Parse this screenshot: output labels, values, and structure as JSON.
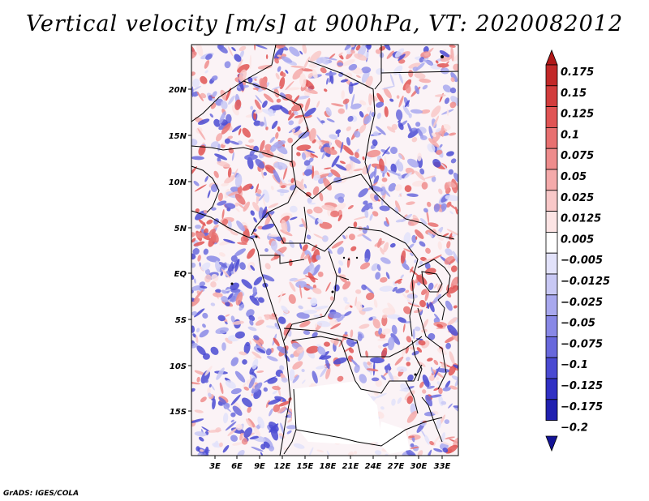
{
  "title": "Vertical velocity [m/s] at 900hPa, VT: 2020082012",
  "footer": "GrADS: IGES/COLA",
  "map": {
    "lon_labels": [
      "3E",
      "6E",
      "9E",
      "12E",
      "15E",
      "18E",
      "21E",
      "24E",
      "27E",
      "30E",
      "33E"
    ],
    "lat_labels": [
      "20N",
      "15N",
      "10N",
      "5N",
      "EQ",
      "5S",
      "10S",
      "15S"
    ]
  },
  "colorbar": {
    "levels": [
      "0.175",
      "0.15",
      "0.125",
      "0.1",
      "0.075",
      "0.05",
      "0.025",
      "0.0125",
      "0.005",
      "−0.005",
      "−0.0125",
      "−0.025",
      "−0.05",
      "−0.075",
      "−0.1",
      "−0.125",
      "−0.175",
      "−0.2"
    ],
    "colors": [
      "#b01818",
      "#c22828",
      "#d23c3c",
      "#e05454",
      "#e87070",
      "#ee8c8c",
      "#f4aaaa",
      "#f8c8c8",
      "#fce4e4",
      "#ffffff",
      "#e2e2fa",
      "#c8c8f4",
      "#a8a8ee",
      "#8888e6",
      "#6868dc",
      "#4a4ad2",
      "#3030c4",
      "#2020b0",
      "#141496"
    ]
  }
}
